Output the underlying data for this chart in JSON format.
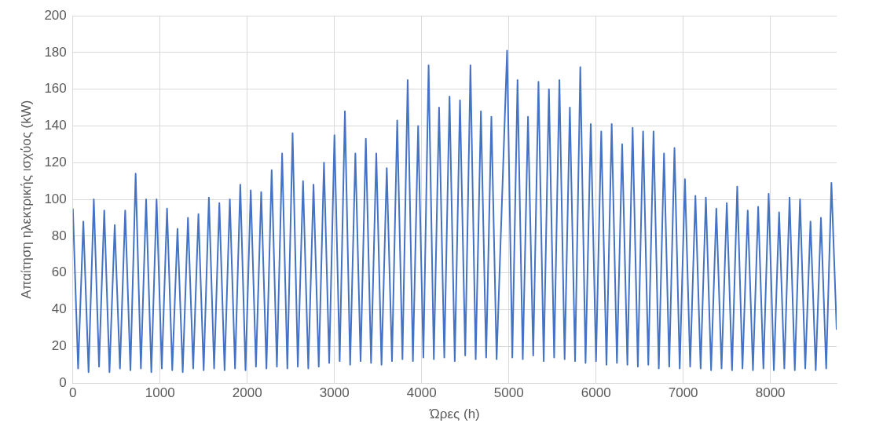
{
  "chart_data": {
    "type": "line",
    "xlabel": "Ώρες (h)",
    "ylabel": "Απαίτηση ηλεκτρικής ισχύος (kW)",
    "xlim": [
      0,
      8760
    ],
    "xticks": [
      0,
      1000,
      2000,
      3000,
      4000,
      5000,
      6000,
      7000,
      8000
    ],
    "ylim": [
      0,
      200
    ],
    "yticks": [
      0,
      20,
      40,
      60,
      80,
      100,
      120,
      140,
      160,
      180,
      200
    ],
    "grid": true,
    "series": [
      {
        "color": "#4472c4",
        "x": [
          0,
          60,
          120,
          180,
          240,
          300,
          360,
          420,
          480,
          540,
          600,
          660,
          720,
          780,
          840,
          900,
          960,
          1020,
          1080,
          1140,
          1200,
          1260,
          1320,
          1380,
          1440,
          1500,
          1560,
          1620,
          1680,
          1740,
          1800,
          1860,
          1920,
          1980,
          2040,
          2100,
          2160,
          2220,
          2280,
          2340,
          2400,
          2460,
          2520,
          2580,
          2640,
          2700,
          2760,
          2820,
          2880,
          2940,
          3000,
          3060,
          3120,
          3180,
          3240,
          3300,
          3360,
          3420,
          3480,
          3540,
          3600,
          3660,
          3720,
          3780,
          3840,
          3900,
          3960,
          4020,
          4080,
          4140,
          4200,
          4260,
          4320,
          4380,
          4440,
          4500,
          4560,
          4620,
          4680,
          4740,
          4800,
          4860,
          4980,
          5040,
          5100,
          5160,
          5220,
          5280,
          5340,
          5400,
          5460,
          5520,
          5580,
          5640,
          5700,
          5760,
          5820,
          5880,
          5940,
          6000,
          6060,
          6120,
          6180,
          6240,
          6300,
          6360,
          6420,
          6480,
          6540,
          6600,
          6660,
          6720,
          6780,
          6840,
          6900,
          6960,
          7020,
          7080,
          7140,
          7200,
          7260,
          7320,
          7380,
          7440,
          7500,
          7560,
          7620,
          7680,
          7740,
          7800,
          7860,
          7920,
          7980,
          8040,
          8100,
          8160,
          8220,
          8280,
          8340,
          8400,
          8460,
          8520,
          8580,
          8640,
          8700,
          8760
        ],
        "values": [
          95,
          8,
          88,
          6,
          100,
          9,
          94,
          6,
          86,
          8,
          94,
          7,
          114,
          8,
          100,
          6,
          100,
          8,
          95,
          7,
          84,
          6,
          90,
          8,
          92,
          7,
          101,
          8,
          98,
          7,
          100,
          8,
          108,
          7,
          105,
          9,
          104,
          8,
          116,
          9,
          125,
          8,
          136,
          9,
          110,
          8,
          108,
          9,
          120,
          11,
          135,
          12,
          148,
          10,
          125,
          12,
          133,
          11,
          125,
          10,
          117,
          12,
          143,
          13,
          165,
          12,
          140,
          14,
          173,
          13,
          150,
          14,
          156,
          12,
          154,
          15,
          173,
          13,
          148,
          14,
          145,
          13,
          181,
          14,
          165,
          13,
          145,
          15,
          164,
          12,
          160,
          14,
          165,
          13,
          150,
          12,
          172,
          11,
          141,
          12,
          137,
          10,
          141,
          11,
          130,
          10,
          139,
          9,
          137,
          10,
          137,
          8,
          125,
          9,
          128,
          8,
          111,
          9,
          102,
          8,
          101,
          7,
          95,
          8,
          98,
          7,
          107,
          8,
          94,
          7,
          96,
          8,
          103,
          7,
          93,
          8,
          101,
          7,
          100,
          8,
          88,
          7,
          90,
          8,
          109,
          29
        ]
      }
    ]
  }
}
